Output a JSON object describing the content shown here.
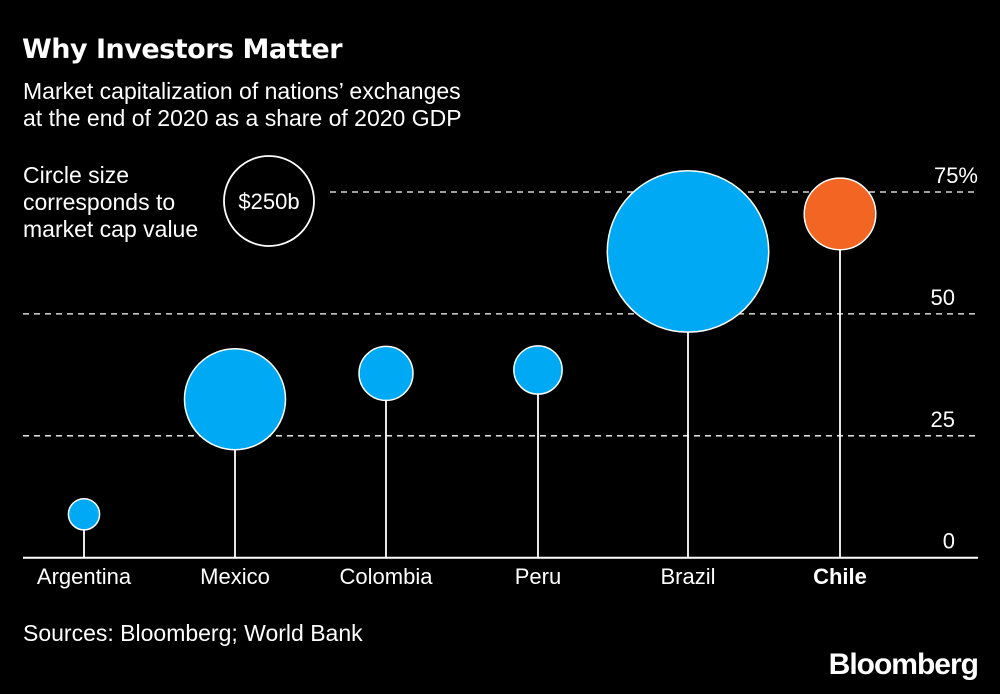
{
  "title": "Why Investors Matter",
  "subtitle_line1": "Market capitalization of nations’ exchanges",
  "subtitle_line2": "at the end of 2020 as a share of 2020 GDP",
  "size_legend": {
    "lines": [
      "Circle size",
      "corresponds to",
      "market cap value"
    ],
    "reference_label": "$250b",
    "reference_value": 250
  },
  "source": "Sources: Bloomberg; World Bank",
  "logo": "Bloomberg",
  "colors": {
    "background": "#000000",
    "default": "#00A9F4",
    "highlight": "#F26522",
    "text": "#FFFFFF"
  },
  "chart_data": {
    "type": "scatter",
    "subtype": "lollipop-bubble",
    "categories": [
      "Argentina",
      "Mexico",
      "Colombia",
      "Peru",
      "Brazil",
      "Chile"
    ],
    "highlighted": "Chile",
    "series": [
      {
        "values": [
          8.9,
          32.5,
          37.8,
          38.5,
          62.8,
          70.5
        ],
        "market_cap_b": [
          30,
          315,
          90,
          72,
          804,
          158
        ]
      }
    ],
    "ylim": [
      0,
      75
    ],
    "yticks": [
      0,
      25,
      50,
      75
    ],
    "ytick_labels": [
      "0",
      "25",
      "50",
      "75%"
    ],
    "grid": true,
    "grid_style": "dashed",
    "yaxis_position": "right"
  }
}
